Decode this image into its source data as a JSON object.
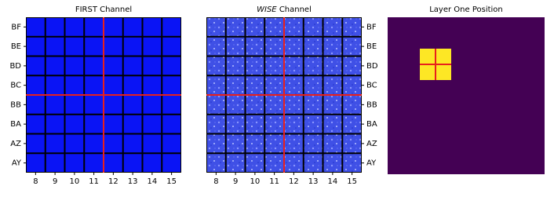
{
  "panels": [
    {
      "title": "FIRST Channel",
      "xticks": [
        8,
        9,
        10,
        11,
        12,
        13,
        14,
        15
      ],
      "yticks": [
        "BF",
        "BE",
        "BD",
        "BC",
        "BB",
        "BA",
        "AZ",
        "AY"
      ]
    },
    {
      "title_emphasis": "WISE",
      "title": "Channel",
      "xticks": [
        8,
        9,
        10,
        11,
        12,
        13,
        14,
        15
      ],
      "yticks": [
        "BF",
        "BE",
        "BD",
        "BC",
        "BB",
        "BA",
        "AZ",
        "AY"
      ]
    },
    {
      "title": "Layer One Position"
    }
  ]
}
